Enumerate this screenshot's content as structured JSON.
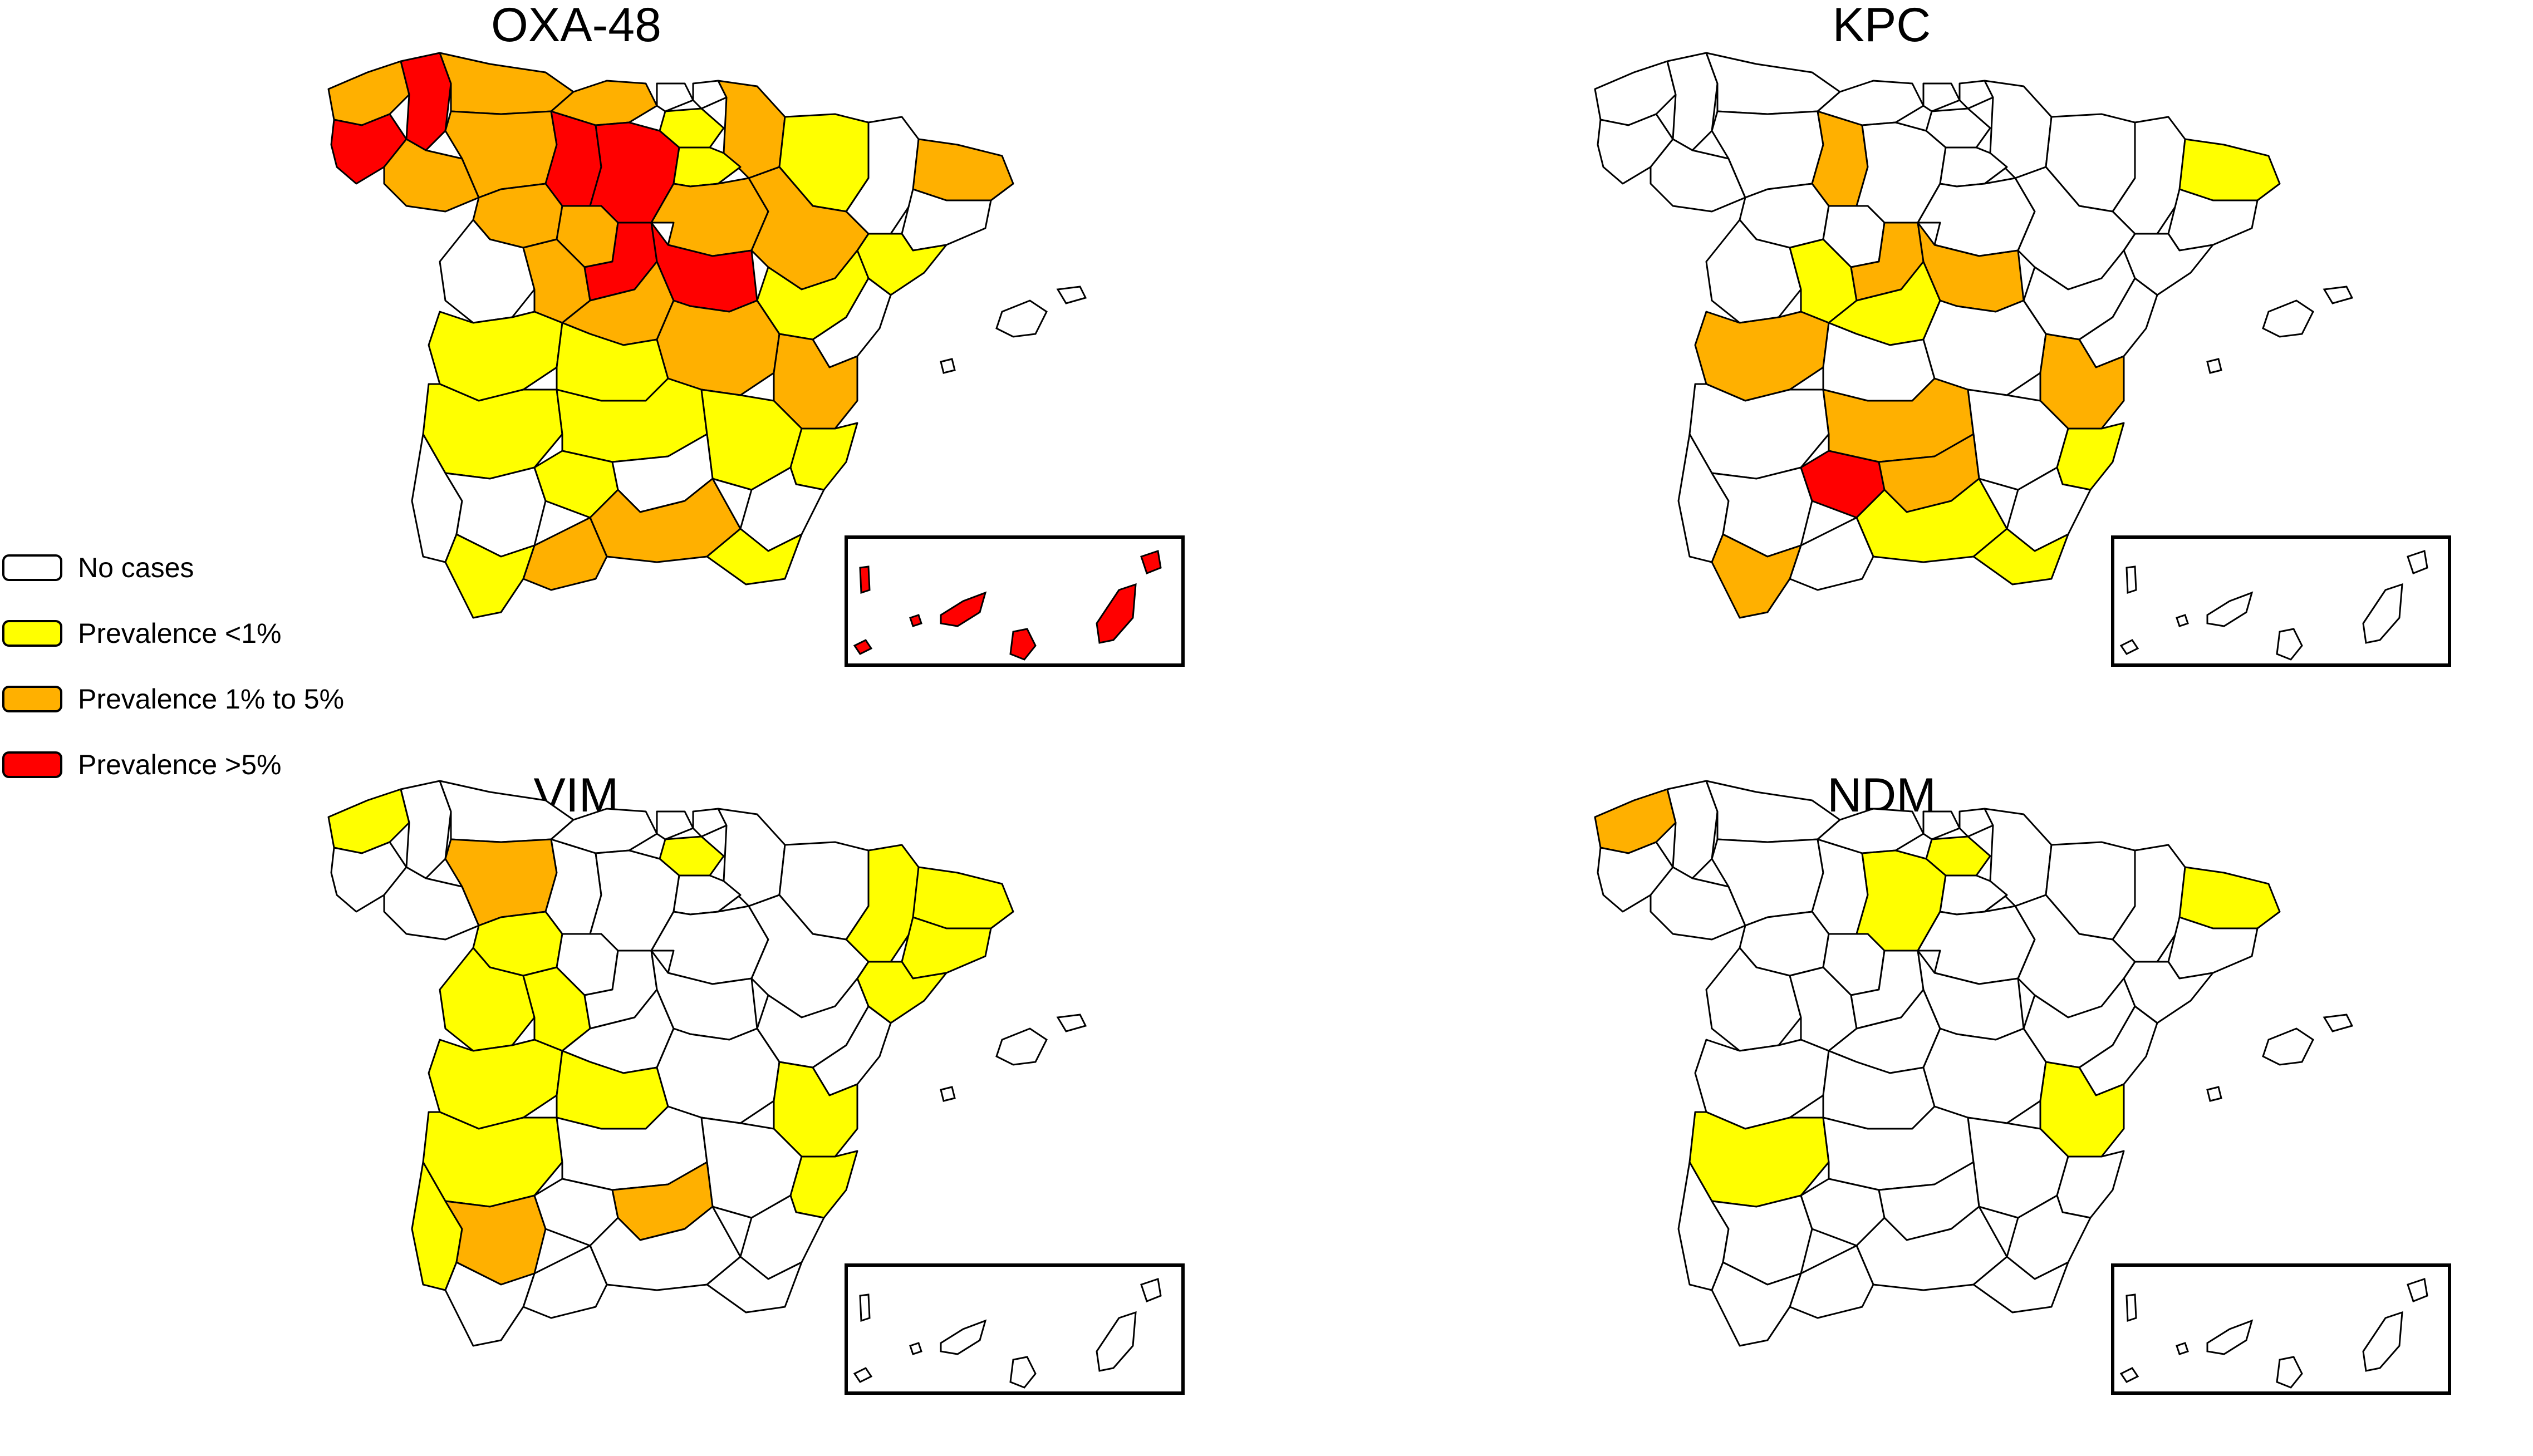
{
  "legend": {
    "items": [
      {
        "key": "none",
        "label": "No cases",
        "color": "#ffffff"
      },
      {
        "key": "low",
        "label": "Prevalence <1%",
        "color": "#ffff00"
      },
      {
        "key": "mid",
        "label": "Prevalence 1% to 5%",
        "color": "#ffb000"
      },
      {
        "key": "high",
        "label": "Prevalence >5%",
        "color": "#ff0000"
      }
    ]
  },
  "maps": [
    {
      "title": "OXA-48",
      "regions": {
        "Lugo": "high",
        "Pontevedra": "high",
        "Palencia": "high",
        "Burgos": "high",
        "Segovia": "high",
        "Guadalajara": "high",
        "Santa Cruz de Tenerife": "high",
        "Las Palmas": "high",
        "A Coruña": "mid",
        "Ourense": "mid",
        "Asturias": "mid",
        "León": "mid",
        "Cantabria": "mid",
        "Navarra": "mid",
        "Zamora": "mid",
        "Valladolid": "mid",
        "Soria": "mid",
        "Ávila": "mid",
        "Madrid": "mid",
        "Zaragoza": "mid",
        "Cuenca": "mid",
        "Valencia": "mid",
        "Girona": "mid",
        "Granada": "mid",
        "Málaga": "mid",
        "Álava": "low",
        "La Rioja": "low",
        "Huesca": "low",
        "Tarragona": "low",
        "Teruel": "low",
        "Cáceres": "low",
        "Toledo": "low",
        "Badajoz": "low",
        "Ciudad Real": "low",
        "Albacete": "low",
        "Córdoba": "low",
        "Alicante": "low",
        "Almería": "low",
        "Cádiz": "low"
      }
    },
    {
      "title": "KPC",
      "regions": {
        "Córdoba": "high",
        "Palencia": "mid",
        "Segovia": "mid",
        "Guadalajara": "mid",
        "Cáceres": "mid",
        "Ciudad Real": "mid",
        "Jaén": "mid",
        "Valencia": "mid",
        "Cádiz": "mid",
        "Girona": "low",
        "Ávila": "low",
        "Madrid": "low",
        "Alicante": "low",
        "Granada": "low",
        "Almería": "low"
      }
    },
    {
      "title": "VIM",
      "regions": {
        "León": "mid",
        "Sevilla": "mid",
        "Jaén": "mid",
        "A Coruña": "low",
        "Álava": "low",
        "Zamora": "low",
        "Salamanca": "low",
        "Ávila": "low",
        "Cáceres": "low",
        "Badajoz": "low",
        "Toledo": "low",
        "Huelva": "low",
        "Valencia": "low",
        "Alicante": "low",
        "Lleida": "low",
        "Barcelona": "low",
        "Girona": "low",
        "Tarragona": "low"
      }
    },
    {
      "title": "NDM",
      "regions": {
        "A Coruña": "mid",
        "Álava": "low",
        "Burgos": "low",
        "Girona": "low",
        "Badajoz": "low",
        "Valencia": "low"
      }
    }
  ]
}
